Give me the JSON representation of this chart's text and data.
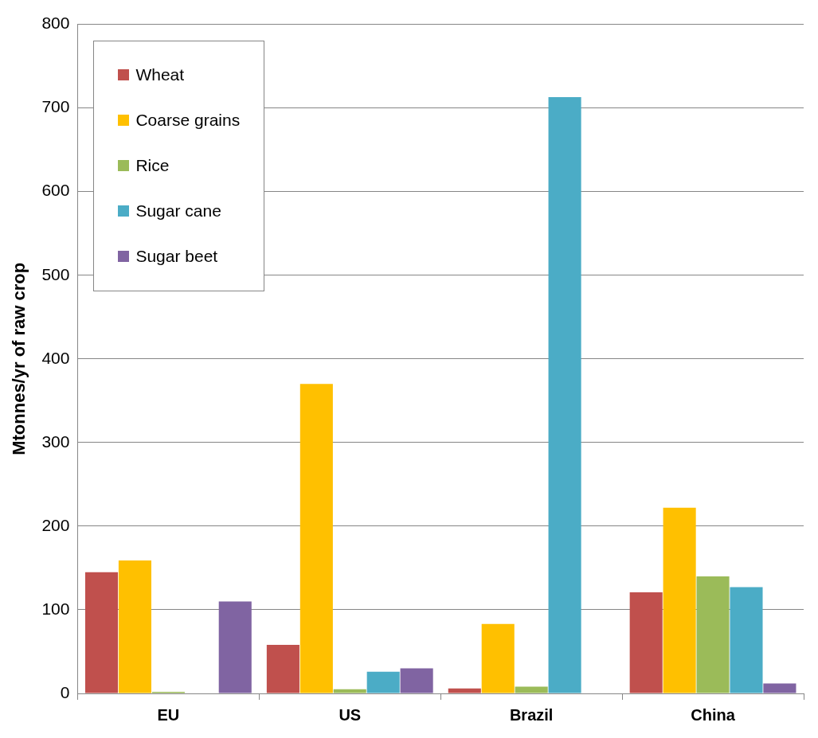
{
  "chart_data": {
    "type": "bar",
    "ylabel": "Mtonnes/yr of raw crop",
    "categories": [
      "EU",
      "US",
      "Brazil",
      "China"
    ],
    "series": [
      {
        "name": "Wheat",
        "color": "#c0504d",
        "values": [
          145,
          58,
          6,
          121
        ]
      },
      {
        "name": "Coarse grains",
        "color": "#ffc000",
        "values": [
          159,
          370,
          83,
          222
        ]
      },
      {
        "name": "Rice",
        "color": "#9bbb59",
        "values": [
          2,
          5,
          8,
          140
        ]
      },
      {
        "name": "Sugar cane",
        "color": "#4bacc6",
        "values": [
          0,
          26,
          713,
          127
        ]
      },
      {
        "name": "Sugar beet",
        "color": "#8064a2",
        "values": [
          110,
          30,
          0,
          12
        ]
      }
    ],
    "ylim": [
      0,
      800
    ],
    "yticks": [
      0,
      100,
      200,
      300,
      400,
      500,
      600,
      700,
      800
    ],
    "grid": "y",
    "legend": "top left"
  }
}
